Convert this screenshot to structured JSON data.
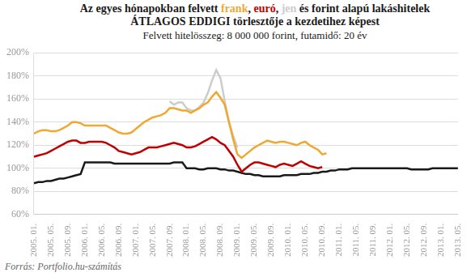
{
  "chart_data": {
    "type": "line",
    "title": "Az egyes hónapokban felvett frank, euró, jen és forint alapú lakáshitelek ÁTLAGOS EDDIGI törlesztője a kezdetihez képest",
    "subtitle": "Felvett hitelösszeg: 8 000 000 forint, futamidő: 20 év",
    "source": "Forrás: Portfolio.hu-számítás",
    "categories": [
      "2005. 01.",
      null,
      null,
      null,
      "2005. 05.",
      null,
      null,
      null,
      "2005. 09.",
      null,
      null,
      null,
      "2006. 01.",
      null,
      null,
      null,
      "2006. 05.",
      null,
      null,
      null,
      "2006. 09.",
      null,
      null,
      null,
      "2007. 01.",
      null,
      null,
      null,
      "2007. 05.",
      null,
      null,
      null,
      "2007. 09.",
      null,
      null,
      null,
      "2008. 01.",
      null,
      null,
      null,
      "2008. 05.",
      null,
      null,
      null,
      "2008. 09.",
      null,
      null,
      null,
      "2009. 01.",
      null,
      null,
      null,
      "2009. 05.",
      null,
      null,
      null,
      "2009. 09.",
      null,
      null,
      null,
      "2010. 01.",
      null,
      null,
      null,
      "2010. 05.",
      null,
      null,
      null,
      "2010. 09.",
      null,
      null,
      null,
      "2011. 01.",
      null,
      null,
      null,
      "2011. 05.",
      null,
      null,
      null,
      "2011. 09.",
      null,
      null,
      null,
      "2012. 01.",
      null,
      null,
      null,
      "2012. 05.",
      null,
      null,
      null,
      "2012. 09.",
      null,
      null,
      null,
      "2013. 01.",
      null,
      null,
      null,
      "2013. 05."
    ],
    "series": [
      {
        "name": "frank",
        "color": "#f0a830",
        "values": [
          130,
          132,
          133,
          133,
          132,
          132,
          133,
          135,
          137,
          140,
          140,
          139,
          137,
          137,
          137,
          137,
          137,
          137,
          135,
          133,
          131,
          130,
          130,
          131,
          134,
          137,
          140,
          142,
          144,
          145,
          146,
          148,
          152,
          152,
          151,
          150,
          150,
          148,
          150,
          152,
          155,
          157,
          162,
          166,
          161,
          155,
          140,
          125,
          112,
          109,
          112,
          115,
          118,
          120,
          122,
          124,
          123,
          122,
          123,
          123,
          122,
          121,
          120,
          122,
          123,
          120,
          118,
          116,
          112,
          113,
          null,
          null,
          null,
          null,
          null,
          null,
          null,
          null,
          null,
          null,
          null,
          null,
          null,
          null,
          null,
          null,
          null,
          null,
          null,
          null,
          null,
          null,
          null,
          null,
          null,
          null,
          null,
          null,
          null,
          null,
          null
        ]
      },
      {
        "name": "euró",
        "color": "#c00000",
        "values": [
          110,
          111,
          112,
          113,
          115,
          117,
          119,
          121,
          123,
          124,
          124,
          122,
          122,
          123,
          123,
          123,
          123,
          122,
          120,
          118,
          115,
          114,
          113,
          112,
          113,
          114,
          116,
          118,
          118,
          118,
          119,
          120,
          121,
          122,
          121,
          120,
          118,
          118,
          119,
          121,
          123,
          125,
          127,
          125,
          122,
          120,
          115,
          110,
          103,
          97,
          100,
          103,
          105,
          105,
          104,
          103,
          102,
          101,
          103,
          104,
          103,
          102,
          104,
          106,
          104,
          102,
          101,
          100,
          101,
          null,
          null,
          null,
          null,
          null,
          null,
          null,
          null,
          null,
          null,
          null,
          null,
          null,
          null,
          null,
          null,
          null,
          null,
          null,
          null,
          null,
          null,
          null,
          null,
          null,
          null,
          null,
          null,
          null,
          null,
          null,
          null
        ]
      },
      {
        "name": "jen",
        "color": "#cccccc",
        "values": [
          null,
          null,
          null,
          null,
          null,
          null,
          null,
          null,
          null,
          null,
          null,
          null,
          null,
          null,
          null,
          null,
          null,
          null,
          null,
          null,
          null,
          null,
          null,
          null,
          null,
          null,
          null,
          null,
          null,
          null,
          null,
          null,
          158,
          155,
          157,
          157,
          152,
          150,
          150,
          153,
          157,
          165,
          176,
          185,
          178,
          158,
          140,
          128,
          118,
          null,
          null,
          null,
          null,
          null,
          null,
          null,
          null,
          null,
          null,
          null,
          null,
          null,
          null,
          null,
          null,
          null,
          null,
          null,
          null,
          null,
          null,
          null,
          null,
          null,
          null,
          null,
          null,
          null,
          null,
          null,
          null,
          null,
          null,
          null,
          null,
          null,
          null,
          null,
          null,
          null,
          null,
          null,
          null,
          null,
          null,
          null,
          null,
          null,
          null,
          null,
          null
        ]
      },
      {
        "name": "forint",
        "color": "#1a1a1a",
        "values": [
          87,
          88,
          88,
          89,
          89,
          90,
          91,
          91,
          92,
          93,
          94,
          95,
          105,
          105,
          105,
          105,
          105,
          105,
          105,
          104,
          104,
          104,
          104,
          104,
          104,
          104,
          104,
          104,
          104,
          104,
          104,
          104,
          104,
          105,
          105,
          105,
          100,
          100,
          100,
          99,
          99,
          100,
          100,
          100,
          99,
          99,
          98,
          98,
          97,
          96,
          95,
          95,
          94,
          94,
          93,
          93,
          93,
          93,
          93,
          94,
          94,
          94,
          94,
          95,
          95,
          95,
          96,
          96,
          97,
          97,
          98,
          98,
          99,
          99,
          99,
          100,
          100,
          100,
          100,
          100,
          100,
          100,
          100,
          100,
          100,
          100,
          100,
          100,
          100,
          99,
          99,
          99,
          99,
          99,
          100,
          100,
          100,
          100,
          100,
          100,
          100
        ]
      }
    ],
    "ylim": [
      60,
      200
    ],
    "yticks": [
      {
        "value": 60,
        "label": "60%"
      },
      {
        "value": 80,
        "label": "80%"
      },
      {
        "value": 100,
        "label": "100%"
      },
      {
        "value": 120,
        "label": "120%"
      },
      {
        "value": 140,
        "label": "140%"
      },
      {
        "value": 160,
        "label": "160%"
      },
      {
        "value": 180,
        "label": "180%"
      },
      {
        "value": 200,
        "label": "200%"
      }
    ],
    "grid": true
  }
}
